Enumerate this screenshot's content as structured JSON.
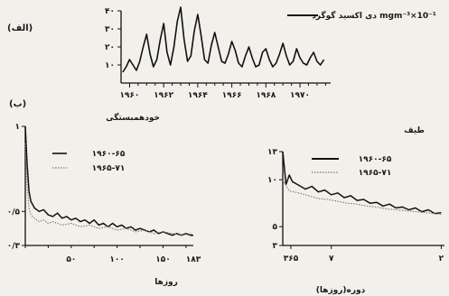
{
  "chart_data": [
    {
      "type": "line",
      "panel_label": "(الف)",
      "legend": "دی اکسید گوگرد mgm⁻³×10⁻¹",
      "x_ticks": [
        "۱۹۶۰",
        "۱۹۶۲",
        "۱۹۶۴",
        "۱۹۶۶",
        "۱۹۶۸",
        "۱۹۷۰"
      ],
      "y_ticks": [
        "۴۰",
        "۳۰",
        "۲۰",
        "۱۰"
      ],
      "xlim": [
        1959.5,
        1971.8
      ],
      "ylim": [
        0,
        40
      ],
      "series": [
        {
          "x": [
            1959.6,
            1959.8,
            1960.0,
            1960.2,
            1960.4,
            1960.6,
            1960.8,
            1961.0,
            1961.2,
            1961.4,
            1961.6,
            1961.8,
            1962.0,
            1962.2,
            1962.4,
            1962.6,
            1962.8,
            1963.0,
            1963.2,
            1963.4,
            1963.6,
            1963.8,
            1964.0,
            1964.2,
            1964.4,
            1964.6,
            1964.8,
            1965.0,
            1965.2,
            1965.4,
            1965.6,
            1965.8,
            1966.0,
            1966.2,
            1966.4,
            1966.6,
            1966.8,
            1967.0,
            1967.2,
            1967.4,
            1967.6,
            1967.8,
            1968.0,
            1968.2,
            1968.4,
            1968.6,
            1968.8,
            1969.0,
            1969.2,
            1969.4,
            1969.6,
            1969.8,
            1970.0,
            1970.2,
            1970.4,
            1970.6,
            1970.8,
            1971.0,
            1971.2,
            1971.4
          ],
          "y": [
            6,
            9,
            13,
            10,
            7,
            12,
            20,
            27,
            16,
            9,
            13,
            24,
            33,
            17,
            10,
            20,
            34,
            42,
            24,
            12,
            15,
            29,
            38,
            26,
            13,
            11,
            21,
            28,
            20,
            12,
            11,
            16,
            23,
            18,
            11,
            9,
            15,
            20,
            14,
            9,
            10,
            17,
            19,
            13,
            9,
            11,
            16,
            22,
            15,
            10,
            12,
            19,
            14,
            11,
            10,
            14,
            17,
            12,
            10,
            13
          ]
        }
      ]
    },
    {
      "type": "line",
      "panel_label": "(ب)",
      "title": "خودهمبستگی",
      "xlabel": "روزها",
      "x_ticks": [
        "۵۰",
        "۱۰۰",
        "۱۵۰",
        "۱۸۳"
      ],
      "y_ticks": [
        "۱",
        "۰/۵",
        "۰/۳"
      ],
      "xlim": [
        0,
        183
      ],
      "ylim": [
        0.3,
        1.0
      ],
      "series": [
        {
          "name": "۱۹۶۰-۶۵",
          "x": [
            0,
            2,
            4,
            6,
            10,
            15,
            20,
            25,
            30,
            35,
            40,
            45,
            50,
            55,
            60,
            65,
            70,
            75,
            80,
            85,
            90,
            95,
            100,
            105,
            110,
            115,
            120,
            125,
            130,
            135,
            140,
            145,
            150,
            155,
            160,
            165,
            170,
            175,
            180,
            183
          ],
          "y": [
            1.0,
            0.78,
            0.62,
            0.56,
            0.52,
            0.5,
            0.51,
            0.48,
            0.47,
            0.49,
            0.46,
            0.47,
            0.45,
            0.46,
            0.44,
            0.45,
            0.43,
            0.45,
            0.42,
            0.43,
            0.41,
            0.43,
            0.41,
            0.42,
            0.4,
            0.41,
            0.39,
            0.4,
            0.39,
            0.38,
            0.39,
            0.37,
            0.38,
            0.37,
            0.36,
            0.37,
            0.36,
            0.37,
            0.36,
            0.36
          ]
        },
        {
          "name": "۱۹۶۵-۷۱",
          "x": [
            0,
            2,
            4,
            6,
            10,
            15,
            20,
            25,
            30,
            40,
            50,
            60,
            70,
            80,
            90,
            100,
            110,
            120,
            130,
            140,
            150,
            160,
            170,
            180,
            183
          ],
          "y": [
            0.9,
            0.66,
            0.52,
            0.48,
            0.46,
            0.44,
            0.45,
            0.43,
            0.44,
            0.42,
            0.43,
            0.41,
            0.42,
            0.4,
            0.41,
            0.39,
            0.4,
            0.38,
            0.39,
            0.37,
            0.38,
            0.37,
            0.36,
            0.37,
            0.36
          ]
        }
      ]
    },
    {
      "type": "line",
      "title": "طیف",
      "xlabel": "دوره(روزها)",
      "x_ticks": [
        "۳۶۵",
        "۷",
        "۲"
      ],
      "y_ticks": [
        "۱۳",
        "۱۰",
        "۵",
        "۳"
      ],
      "xlim": [
        0,
        1
      ],
      "ylim": [
        3,
        13
      ],
      "series": [
        {
          "name": "۱۹۶۰-۶۵",
          "x": [
            0.0,
            0.02,
            0.04,
            0.06,
            0.1,
            0.14,
            0.18,
            0.22,
            0.26,
            0.3,
            0.34,
            0.38,
            0.42,
            0.46,
            0.5,
            0.54,
            0.58,
            0.62,
            0.66,
            0.7,
            0.74,
            0.78,
            0.82,
            0.86,
            0.9,
            0.94,
            0.98
          ],
          "y": [
            13,
            9.5,
            10.5,
            9.8,
            9.4,
            9.0,
            9.3,
            8.7,
            8.9,
            8.4,
            8.6,
            8.1,
            8.3,
            7.8,
            7.9,
            7.5,
            7.6,
            7.2,
            7.4,
            7.0,
            7.1,
            6.8,
            7.0,
            6.6,
            6.8,
            6.4,
            6.5
          ]
        },
        {
          "name": "۱۹۶۵-۷۱",
          "x": [
            0.0,
            0.04,
            0.1,
            0.16,
            0.22,
            0.28,
            0.34,
            0.4,
            0.46,
            0.52,
            0.58,
            0.64,
            0.7,
            0.76,
            0.82,
            0.88,
            0.94,
            0.98
          ],
          "y": [
            10,
            8.8,
            8.6,
            8.3,
            8.0,
            7.9,
            7.7,
            7.5,
            7.4,
            7.2,
            7.1,
            6.9,
            6.8,
            6.7,
            6.6,
            6.5,
            6.4,
            6.3
          ]
        }
      ]
    }
  ]
}
